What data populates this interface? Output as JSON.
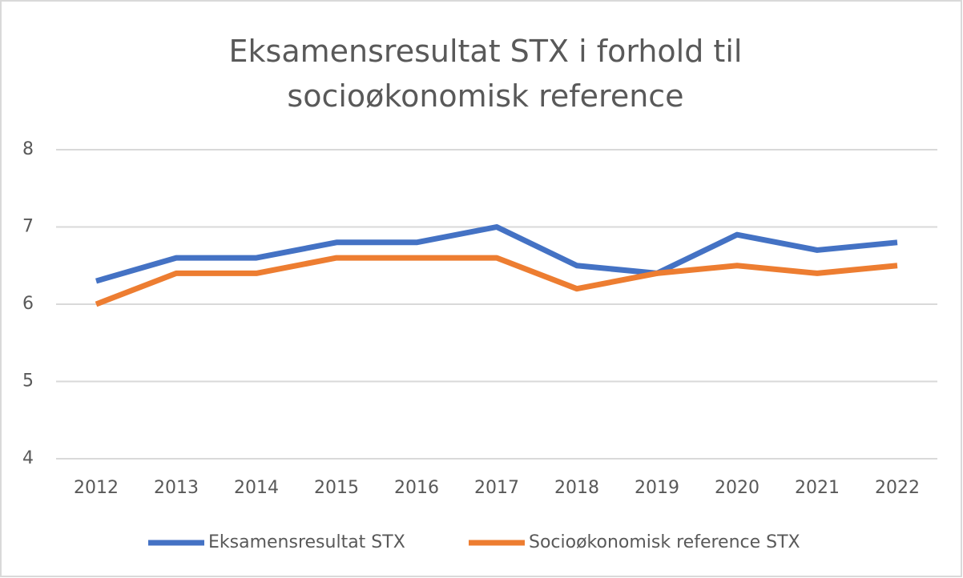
{
  "chart_data": {
    "type": "line",
    "title": "Eksamensresultat STX i forhold til socioøkonomisk reference",
    "categories": [
      "2012",
      "2013",
      "2014",
      "2015",
      "2016",
      "2017",
      "2018",
      "2019",
      "2020",
      "2021",
      "2022"
    ],
    "series": [
      {
        "name": "Eksamensresultat STX",
        "color": "#4472c4",
        "values": [
          6.3,
          6.6,
          6.6,
          6.8,
          6.8,
          7.0,
          6.5,
          6.4,
          6.9,
          6.7,
          6.8
        ]
      },
      {
        "name": "Socioøkonomisk reference STX",
        "color": "#ed7d31",
        "values": [
          6.0,
          6.4,
          6.4,
          6.6,
          6.6,
          6.6,
          6.2,
          6.4,
          6.5,
          6.4,
          6.5
        ]
      }
    ],
    "ylim": [
      4,
      8
    ],
    "yticks": [
      4,
      5,
      6,
      7,
      8
    ],
    "grid": true,
    "legend": "bottom"
  }
}
